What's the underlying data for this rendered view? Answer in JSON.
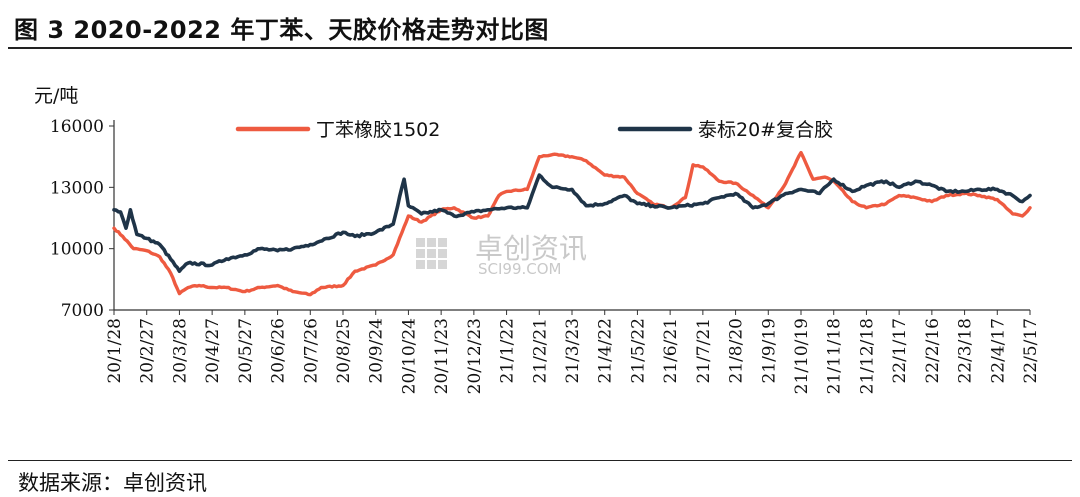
{
  "figure": {
    "title": "图 3 2020-2022 年丁苯、天胶价格走势对比图",
    "source": "数据来源：卓创资讯"
  },
  "watermark": {
    "cn": "卓创资讯",
    "en": "SCI99.COM"
  },
  "chart_data": {
    "type": "line",
    "ylabel": "元/吨",
    "ylim": [
      7000,
      16000
    ],
    "yticks": [
      7000,
      10000,
      13000,
      16000
    ],
    "xticks": [
      "20/1/28",
      "20/2/27",
      "20/3/28",
      "20/4/27",
      "20/5/27",
      "20/6/26",
      "20/7/26",
      "20/8/25",
      "20/9/24",
      "20/10/24",
      "20/11/23",
      "20/12/23",
      "21/1/22",
      "21/2/21",
      "21/3/23",
      "21/4/22",
      "21/5/22",
      "21/6/21",
      "21/7/21",
      "21/8/20",
      "21/9/19",
      "21/10/19",
      "21/11/18",
      "21/12/18",
      "22/1/17",
      "22/2/16",
      "22/3/18",
      "22/4/17",
      "22/5/17"
    ],
    "legend_position": "top",
    "grid": false,
    "x_start": "2020-01-28",
    "series": [
      {
        "name": "丁苯橡胶1502",
        "color": "#ee5a40",
        "points": [
          [
            "2020-01-28",
            11000
          ],
          [
            "2020-02-05",
            10600
          ],
          [
            "2020-02-15",
            10000
          ],
          [
            "2020-02-27",
            9900
          ],
          [
            "2020-03-10",
            9600
          ],
          [
            "2020-03-20",
            8800
          ],
          [
            "2020-03-28",
            7800
          ],
          [
            "2020-04-05",
            8100
          ],
          [
            "2020-04-15",
            8200
          ],
          [
            "2020-04-27",
            8100
          ],
          [
            "2020-05-10",
            8100
          ],
          [
            "2020-05-27",
            7900
          ],
          [
            "2020-06-10",
            8100
          ],
          [
            "2020-06-26",
            8200
          ],
          [
            "2020-07-10",
            7900
          ],
          [
            "2020-07-26",
            7750
          ],
          [
            "2020-08-05",
            8100
          ],
          [
            "2020-08-25",
            8200
          ],
          [
            "2020-09-05",
            8900
          ],
          [
            "2020-09-24",
            9200
          ],
          [
            "2020-10-10",
            9700
          ],
          [
            "2020-10-24",
            11600
          ],
          [
            "2020-11-05",
            11300
          ],
          [
            "2020-11-23",
            11900
          ],
          [
            "2020-12-05",
            12000
          ],
          [
            "2020-12-23",
            11500
          ],
          [
            "2021-01-05",
            11600
          ],
          [
            "2021-01-15",
            12600
          ],
          [
            "2021-01-22",
            12800
          ],
          [
            "2021-02-10",
            12900
          ],
          [
            "2021-02-21",
            14500
          ],
          [
            "2021-03-05",
            14600
          ],
          [
            "2021-03-23",
            14500
          ],
          [
            "2021-04-05",
            14300
          ],
          [
            "2021-04-22",
            13600
          ],
          [
            "2021-05-10",
            13500
          ],
          [
            "2021-05-22",
            12700
          ],
          [
            "2021-06-05",
            12200
          ],
          [
            "2021-06-21",
            12000
          ],
          [
            "2021-07-05",
            12500
          ],
          [
            "2021-07-12",
            14100
          ],
          [
            "2021-07-21",
            14000
          ],
          [
            "2021-08-05",
            13300
          ],
          [
            "2021-08-20",
            13200
          ],
          [
            "2021-09-05",
            12600
          ],
          [
            "2021-09-19",
            12000
          ],
          [
            "2021-10-05",
            13200
          ],
          [
            "2021-10-19",
            14700
          ],
          [
            "2021-10-30",
            13400
          ],
          [
            "2021-11-10",
            13500
          ],
          [
            "2021-11-18",
            13300
          ],
          [
            "2021-12-05",
            12300
          ],
          [
            "2021-12-18",
            12000
          ],
          [
            "2022-01-05",
            12200
          ],
          [
            "2022-01-17",
            12600
          ],
          [
            "2022-02-01",
            12500
          ],
          [
            "2022-02-16",
            12300
          ],
          [
            "2022-03-01",
            12600
          ],
          [
            "2022-03-18",
            12700
          ],
          [
            "2022-04-01",
            12600
          ],
          [
            "2022-04-17",
            12400
          ],
          [
            "2022-05-01",
            11700
          ],
          [
            "2022-05-10",
            11600
          ],
          [
            "2022-05-17",
            12000
          ]
        ]
      },
      {
        "name": "泰标20#复合胶",
        "color": "#1f3448",
        "points": [
          [
            "2020-01-28",
            11900
          ],
          [
            "2020-02-03",
            11800
          ],
          [
            "2020-02-08",
            11000
          ],
          [
            "2020-02-12",
            11900
          ],
          [
            "2020-02-18",
            10700
          ],
          [
            "2020-02-27",
            10500
          ],
          [
            "2020-03-10",
            10200
          ],
          [
            "2020-03-28",
            8900
          ],
          [
            "2020-04-05",
            9300
          ],
          [
            "2020-04-27",
            9200
          ],
          [
            "2020-05-10",
            9500
          ],
          [
            "2020-05-27",
            9700
          ],
          [
            "2020-06-10",
            10000
          ],
          [
            "2020-06-26",
            9900
          ],
          [
            "2020-07-10",
            10000
          ],
          [
            "2020-07-26",
            10200
          ],
          [
            "2020-08-10",
            10500
          ],
          [
            "2020-08-25",
            10800
          ],
          [
            "2020-09-05",
            10600
          ],
          [
            "2020-09-24",
            10800
          ],
          [
            "2020-10-10",
            11200
          ],
          [
            "2020-10-20",
            13400
          ],
          [
            "2020-10-24",
            12100
          ],
          [
            "2020-11-05",
            11700
          ],
          [
            "2020-11-23",
            11900
          ],
          [
            "2020-12-05",
            11600
          ],
          [
            "2020-12-23",
            11800
          ],
          [
            "2021-01-05",
            11900
          ],
          [
            "2021-01-22",
            12000
          ],
          [
            "2021-02-10",
            12000
          ],
          [
            "2021-02-21",
            13600
          ],
          [
            "2021-03-05",
            13000
          ],
          [
            "2021-03-23",
            12900
          ],
          [
            "2021-04-05",
            12100
          ],
          [
            "2021-04-22",
            12200
          ],
          [
            "2021-05-10",
            12600
          ],
          [
            "2021-05-22",
            12200
          ],
          [
            "2021-06-05",
            12100
          ],
          [
            "2021-06-21",
            12000
          ],
          [
            "2021-07-05",
            12100
          ],
          [
            "2021-07-21",
            12200
          ],
          [
            "2021-08-05",
            12500
          ],
          [
            "2021-08-20",
            12700
          ],
          [
            "2021-09-05",
            12000
          ],
          [
            "2021-09-19",
            12200
          ],
          [
            "2021-10-05",
            12700
          ],
          [
            "2021-10-19",
            12900
          ],
          [
            "2021-11-05",
            12700
          ],
          [
            "2021-11-18",
            13400
          ],
          [
            "2021-12-05",
            12800
          ],
          [
            "2021-12-18",
            13100
          ],
          [
            "2022-01-05",
            13300
          ],
          [
            "2022-01-17",
            13000
          ],
          [
            "2022-02-01",
            13300
          ],
          [
            "2022-02-16",
            13100
          ],
          [
            "2022-03-01",
            12800
          ],
          [
            "2022-03-18",
            12800
          ],
          [
            "2022-04-01",
            12900
          ],
          [
            "2022-04-17",
            12900
          ],
          [
            "2022-05-01",
            12600
          ],
          [
            "2022-05-10",
            12300
          ],
          [
            "2022-05-17",
            12600
          ]
        ]
      }
    ]
  }
}
